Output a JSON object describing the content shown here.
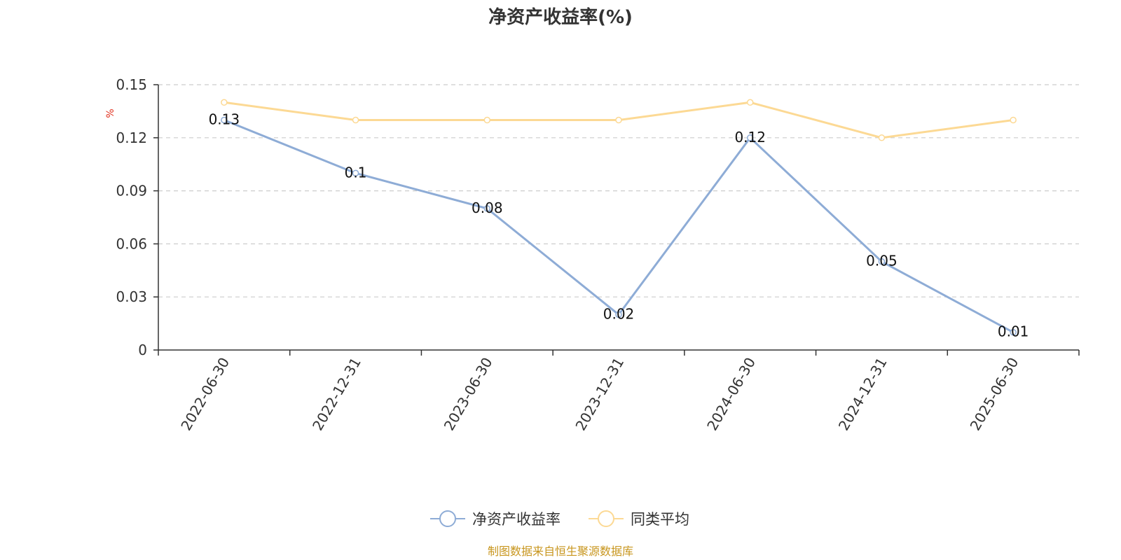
{
  "chart_data": {
    "type": "line",
    "title": "净资产收益率(%)",
    "ylabel": "%",
    "categories": [
      "2022-06-30",
      "2022-12-31",
      "2023-06-30",
      "2023-12-31",
      "2024-06-30",
      "2024-12-31",
      "2025-06-30"
    ],
    "ylim": [
      0,
      0.15
    ],
    "yticks": [
      "0",
      "0.03",
      "0.06",
      "0.09",
      "0.12",
      "0.15"
    ],
    "grid": true,
    "legend_position": "bottom",
    "series": [
      {
        "name": "净资产收益率",
        "color": "#8eacd6",
        "values": [
          0.13,
          0.1,
          0.08,
          0.02,
          0.12,
          0.05,
          0.01
        ],
        "labels": [
          "0.13",
          "0.1",
          "0.08",
          "0.02",
          "0.12",
          "0.05",
          "0.01"
        ]
      },
      {
        "name": "同类平均",
        "color": "#fcd994",
        "values": [
          0.14,
          0.13,
          0.13,
          0.13,
          0.14,
          0.12,
          0.13
        ]
      }
    ]
  },
  "source_text": "制图数据来自恒生聚源数据库"
}
